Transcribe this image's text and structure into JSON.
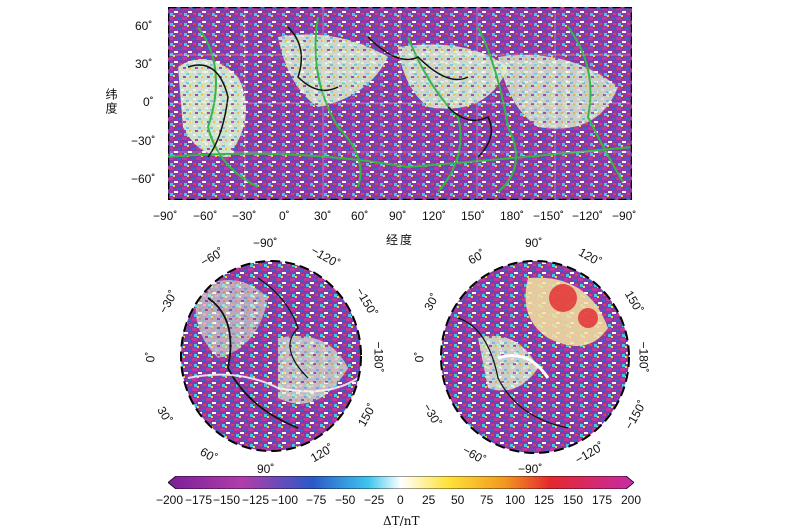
{
  "top_map": {
    "y_axis_title": "纬度",
    "x_axis_title": "经度",
    "y_ticks": [
      "60˚",
      "30˚",
      "0˚",
      "−30˚",
      "−60˚"
    ],
    "x_ticks": [
      "−90˚",
      "−60˚",
      "−30˚",
      "0˚",
      "30˚",
      "60˚",
      "90˚",
      "120˚",
      "150˚",
      "180˚",
      "−150˚",
      "−120˚",
      "−90˚"
    ]
  },
  "polar_left": {
    "labels": [
      "−90˚",
      "−60˚",
      "−120˚",
      "−30˚",
      "−150˚",
      "0˚",
      "−180˚",
      "30˚",
      "150˚",
      "60˚",
      "120˚",
      "90˚"
    ]
  },
  "polar_right": {
    "labels": [
      "90˚",
      "60˚",
      "120˚",
      "30˚",
      "150˚",
      "0˚",
      "−180˚",
      "−30˚",
      "−150˚",
      "−60˚",
      "−120˚",
      "−90˚"
    ]
  },
  "colorbar": {
    "ticks": [
      "−200",
      "−175",
      "−150",
      "−125",
      "−100",
      "−75",
      "−50",
      "−25",
      "0",
      "25",
      "50",
      "75",
      "100",
      "125",
      "150",
      "175",
      "200"
    ],
    "min": -200,
    "max": 200,
    "label": "ΔT/nT",
    "colors": [
      "#7a1f9a",
      "#b23cab",
      "#2a59c7",
      "#3ec6ee",
      "#ffffff",
      "#ffe23a",
      "#f29a20",
      "#e4282e",
      "#c72ba8"
    ]
  }
}
